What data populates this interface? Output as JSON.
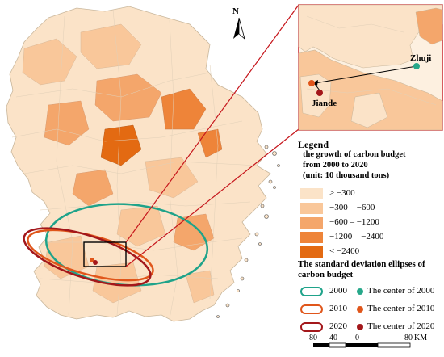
{
  "north_label": "N",
  "inset": {
    "places": [
      {
        "name": "Zhuji"
      },
      {
        "name": "Jiande"
      }
    ]
  },
  "legend": {
    "title": "Legend",
    "subtitle_lines": [
      "the growth of carbon budget",
      "from 2000 to 2020",
      "(unit: 10 thousand tons)"
    ],
    "classes": [
      {
        "label": "> −300",
        "color": "#fbe3c8"
      },
      {
        "label": "−300 – −600",
        "color": "#f9c79a"
      },
      {
        "label": "−600 – −1200",
        "color": "#f4a66b"
      },
      {
        "label": "−1200 – −2400",
        "color": "#ee8439"
      },
      {
        "label": "< −2400",
        "color": "#e36a12"
      }
    ],
    "ellipse_title_lines": [
      "The standard deviation ellipses of",
      "carbon budget"
    ],
    "years": [
      {
        "year": "2000",
        "ellipse_color": "#1fa38a",
        "center_label": "The center of 2000",
        "center_color": "#27a88a"
      },
      {
        "year": "2010",
        "ellipse_color": "#e0561b",
        "center_label": "The center of 2010",
        "center_color": "#e0561b"
      },
      {
        "year": "2020",
        "ellipse_color": "#a3171b",
        "center_label": "The center of 2020",
        "center_color": "#a3171b"
      }
    ]
  },
  "scale": {
    "ticks": [
      "80",
      "40",
      "0",
      "80"
    ],
    "unit": "KM"
  }
}
